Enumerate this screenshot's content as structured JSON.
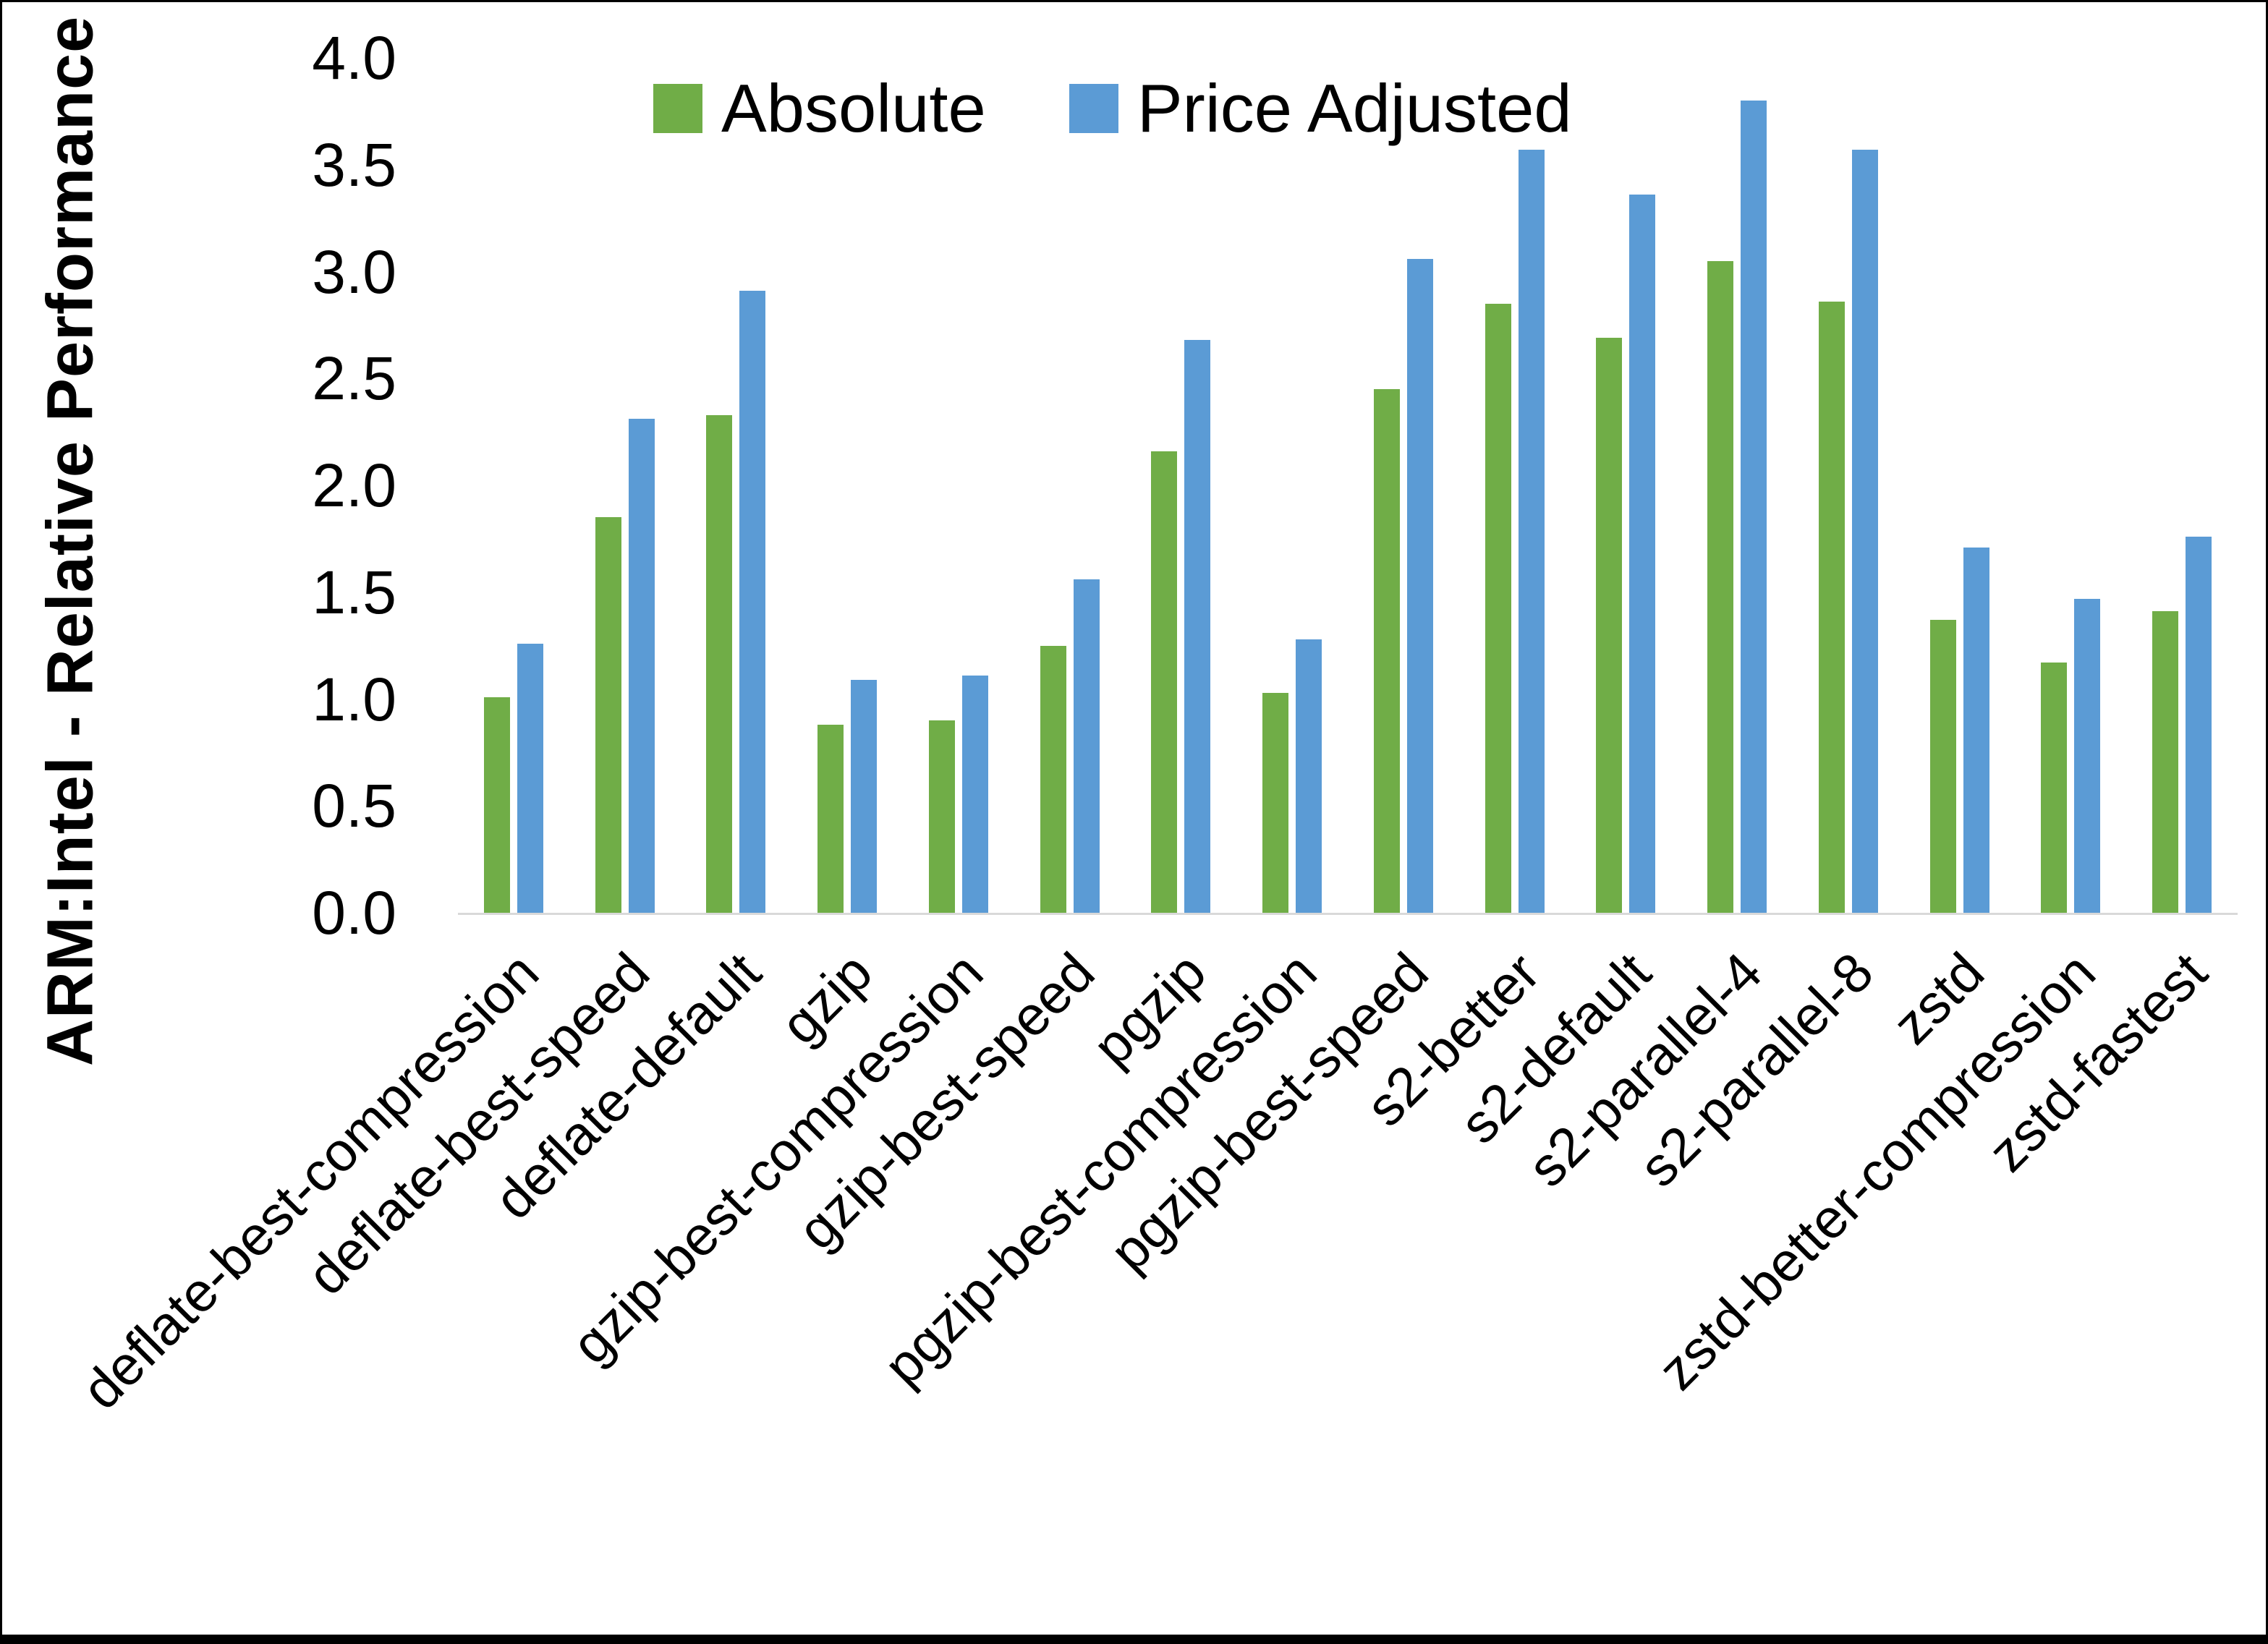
{
  "chart_data": {
    "type": "bar",
    "title": "",
    "xlabel": "",
    "ylabel": "ARM:Intel - Relative Performance",
    "ylim": [
      0.0,
      4.0
    ],
    "ytick_step": 0.5,
    "yticks": [
      "4.0",
      "3.5",
      "3.0",
      "2.5",
      "2.0",
      "1.5",
      "1.0",
      "0.5",
      "0.0"
    ],
    "grid": false,
    "legend_position": "top-center",
    "categories": [
      "deflate-best-compression",
      "deflate-best-speed",
      "deflate-default",
      "gzip",
      "gzip-best-compression",
      "gzip-best-speed",
      "pgzip",
      "pgzip-best-compression",
      "pgzip-best-speed",
      "s2-better",
      "s2-default",
      "s2-parallel-4",
      "s2-parallel-8",
      "zstd",
      "zstd-better-compression",
      "zstd-fastest"
    ],
    "series": [
      {
        "name": "Absolute",
        "color": "#70AD47",
        "values": [
          1.01,
          1.85,
          2.33,
          0.88,
          0.9,
          1.25,
          2.16,
          1.03,
          2.45,
          2.85,
          2.69,
          3.05,
          2.86,
          1.37,
          1.17,
          1.41
        ]
      },
      {
        "name": "Price Adjusted",
        "color": "#5B9BD5",
        "values": [
          1.26,
          2.31,
          2.91,
          1.09,
          1.11,
          1.56,
          2.68,
          1.28,
          3.06,
          3.57,
          3.36,
          3.8,
          3.57,
          1.71,
          1.47,
          1.76
        ]
      }
    ]
  },
  "style": {
    "background": "#FFFFFF",
    "axis_line_color": "#D9D9D9",
    "text_color": "#000000",
    "bottom_bar_color": "#000000"
  }
}
